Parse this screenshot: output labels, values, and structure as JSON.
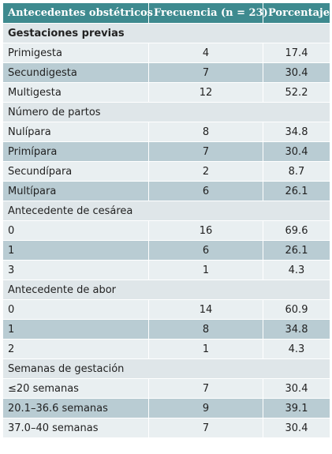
{
  "table": {
    "header": [
      "Antecedentes obstétricos",
      "Frecuencia (n = 23)",
      "Porcentaje"
    ],
    "sections": [
      {
        "title": "Gestaciones previas",
        "rows": [
          [
            "Primigesta",
            "4",
            "17.4"
          ],
          [
            "Secundigesta",
            "7",
            "30.4"
          ],
          [
            "Multigesta",
            "12",
            "52.2"
          ]
        ]
      },
      {
        "title": "Número de partos",
        "rows": [
          [
            "Nulípara",
            "8",
            "34.8"
          ],
          [
            "Primípara",
            "7",
            "30.4"
          ],
          [
            "Secundípara",
            "2",
            "8.7"
          ],
          [
            "Multípara",
            "6",
            "26.1"
          ]
        ]
      },
      {
        "title": "Antecedente de cesárea",
        "rows": [
          [
            "0",
            "16",
            "69.6"
          ],
          [
            "1",
            "6",
            "26.1"
          ],
          [
            "3",
            "1",
            "4.3"
          ]
        ]
      },
      {
        "title": "Antecedente de abor",
        "rows": [
          [
            "0",
            "14",
            "60.9"
          ],
          [
            "1",
            "8",
            "34.8"
          ],
          [
            "2",
            "1",
            "4.3"
          ]
        ]
      },
      {
        "title": "Semanas de gestación",
        "rows": [
          [
            "≤20 semanas",
            "7",
            "30.4"
          ],
          [
            "20.1–36.6 semanas",
            "9",
            "39.1"
          ],
          [
            "37.0–40 semanas",
            "7",
            "30.4"
          ]
        ]
      }
    ]
  }
}
